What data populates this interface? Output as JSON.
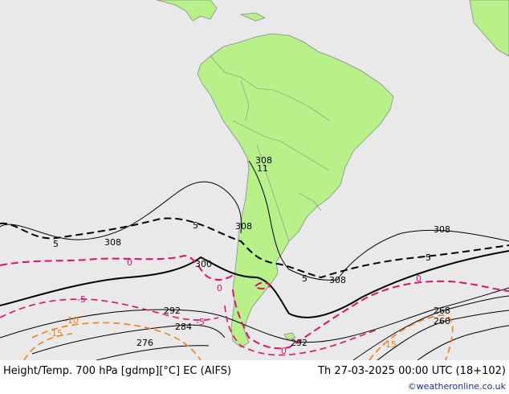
{
  "map": {
    "title": "Height/Temp. 700 hPa [gdmp][°C] EC (AIFS)",
    "valid_time": "Th 27-03-2025 00:00 UTC (18+102)",
    "credit": "©weatheronline.co.uk",
    "colors": {
      "ocean": "#e9e9e9",
      "land": "#b8f08a",
      "coast": "#8a8a8a",
      "height_contour": "#000000",
      "temp_zero": "#e0106e",
      "temp_negative": "#e0106e",
      "temp_cold": "#f08020"
    },
    "contour_labels": {
      "h308a": "308",
      "h308b": "308",
      "h308c": "308",
      "h308d": "308",
      "h308e": "308",
      "h300": "300",
      "h292a": "292",
      "h292b": "292",
      "h284": "284",
      "h276": "276",
      "h268": "268",
      "h260": "260",
      "t5a": "5",
      "t5b": "5",
      "t5c": "5",
      "t5d": "5",
      "t11": "11",
      "t0a": "0",
      "t0b": "0",
      "t0c": "0",
      "t0d": "0",
      "tm5a": "-5",
      "tm5b": "-5",
      "tm10": "-10",
      "tm15a": "-15",
      "tm15b": "-15"
    }
  }
}
